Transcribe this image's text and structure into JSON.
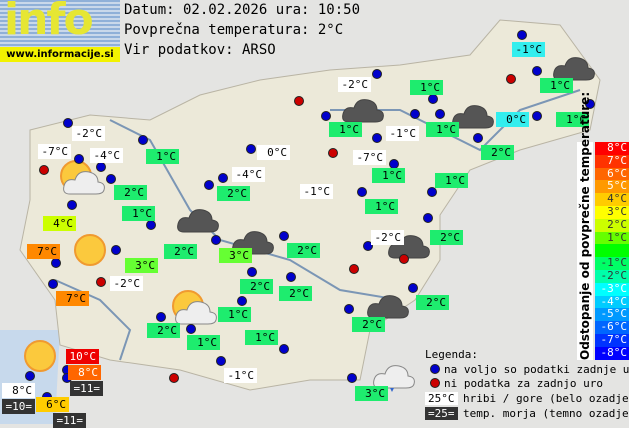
{
  "logo": {
    "text": "info",
    "url": "www.informacije.si"
  },
  "header": {
    "date": "Datum: 02.02.2026 ura: 10:50",
    "avg": "Povprečna temperatura: 2°C",
    "source": "Vir podatkov: ARSO"
  },
  "colors": {
    "green": "#1eec6e",
    "lime": "#66ff33",
    "yellowgreen": "#ccff00",
    "yellow": "#ffcc00",
    "orange": "#ff8800",
    "orange2": "#ff6600",
    "red": "#ee0000",
    "cyan": "#33eeee",
    "white": "#ffffff",
    "dark": "#333333",
    "station_ok": "#0000cc",
    "station_missing": "#cc0000"
  },
  "stations": [
    {
      "t": "-1°C",
      "c": "cyan"
    },
    {
      "t": "-2°C",
      "c": "white"
    },
    {
      "t": "1°C",
      "c": "green"
    },
    {
      "t": "1°C",
      "c": "green"
    },
    {
      "t": "0°C",
      "c": "cyan"
    },
    {
      "t": "1°C",
      "c": "green"
    },
    {
      "t": "1°C",
      "c": "green"
    },
    {
      "t": "-1°C",
      "c": "white"
    },
    {
      "t": "1°C",
      "c": "green"
    },
    {
      "t": "2°C",
      "c": "green"
    },
    {
      "t": "-7°C",
      "c": "white"
    },
    {
      "t": "1°C",
      "c": "green"
    },
    {
      "t": "1°C",
      "c": "green"
    },
    {
      "t": "-1°C",
      "c": "white"
    },
    {
      "t": "1°C",
      "c": "green"
    },
    {
      "t": "-2°C",
      "c": "white"
    },
    {
      "t": "-7°C",
      "c": "white"
    },
    {
      "t": "-4°C",
      "c": "white"
    },
    {
      "t": "1°C",
      "c": "green"
    },
    {
      "t": "0°C",
      "c": "white"
    },
    {
      "t": "-4°C",
      "c": "white"
    },
    {
      "t": "2°C",
      "c": "green"
    },
    {
      "t": "2°C",
      "c": "green"
    },
    {
      "t": "1°C",
      "c": "green"
    },
    {
      "t": "4°C",
      "c": "yellowgreen"
    },
    {
      "t": "7°C",
      "c": "orange"
    },
    {
      "t": "7°C",
      "c": "orange"
    },
    {
      "t": "-2°C",
      "c": "white"
    },
    {
      "t": "3°C",
      "c": "lime"
    },
    {
      "t": "2°C",
      "c": "green"
    },
    {
      "t": "3°C",
      "c": "lime"
    },
    {
      "t": "2°C",
      "c": "green"
    },
    {
      "t": "-2°C",
      "c": "white"
    },
    {
      "t": "2°C",
      "c": "green"
    },
    {
      "t": "2°C",
      "c": "green"
    },
    {
      "t": "2°C",
      "c": "green"
    },
    {
      "t": "2°C",
      "c": "green"
    },
    {
      "t": "2°C",
      "c": "green"
    },
    {
      "t": "1°C",
      "c": "green"
    },
    {
      "t": "2°C",
      "c": "green"
    },
    {
      "t": "1°C",
      "c": "green"
    },
    {
      "t": "1°C",
      "c": "green"
    },
    {
      "t": "-1°C",
      "c": "white"
    },
    {
      "t": "3°C",
      "c": "green"
    },
    {
      "t": "10°C",
      "c": "red"
    },
    {
      "t": "8°C",
      "c": "orange2"
    },
    {
      "t": "=11=",
      "c": "dark"
    },
    {
      "t": "8°C",
      "c": "white"
    },
    {
      "t": "=10=",
      "c": "dark"
    },
    {
      "t": "6°C",
      "c": "yellow"
    },
    {
      "t": "=11=",
      "c": "dark"
    }
  ],
  "weather_icons": [
    "sun-cloud",
    "cloud",
    "sun",
    "sun-cloud",
    "sun",
    "cloud",
    "cloud",
    "cloud",
    "cloud",
    "cloud",
    "cloud",
    "cloud-rain"
  ],
  "scale": {
    "title": "Odstopanje od povprečne temperature:",
    "steps": [
      {
        "t": "8°C",
        "c": "#ff0000"
      },
      {
        "t": "7°C",
        "c": "#ff3300"
      },
      {
        "t": "6°C",
        "c": "#ff6600"
      },
      {
        "t": "5°C",
        "c": "#ff9900"
      },
      {
        "t": "4°C",
        "c": "#ffcc00"
      },
      {
        "t": "3°C",
        "c": "#ffff00"
      },
      {
        "t": "2°C",
        "c": "#ccff00"
      },
      {
        "t": "1°C",
        "c": "#66ff00"
      },
      {
        "t": "",
        "c": "#00ff00"
      },
      {
        "t": "-1°C",
        "c": "#00ff66"
      },
      {
        "t": "-2°C",
        "c": "#00ffaa"
      },
      {
        "t": "-3°C",
        "c": "#00ffff"
      },
      {
        "t": "-4°C",
        "c": "#00ccff"
      },
      {
        "t": "-5°C",
        "c": "#0099ff"
      },
      {
        "t": "-6°C",
        "c": "#0066ff"
      },
      {
        "t": "-7°C",
        "c": "#0033ff"
      },
      {
        "t": "-8°C",
        "c": "#0000ff"
      }
    ]
  },
  "legend": {
    "title": "Legenda:",
    "ok": "na voljo so podatki zadnje ure",
    "missing": "ni podatka za zadnjo uro",
    "mountain_sample": "25°C",
    "mountain": "hribi / gore (belo ozadje)",
    "sea_sample": "=25=",
    "sea": "temp. morja (temno ozadje)"
  }
}
